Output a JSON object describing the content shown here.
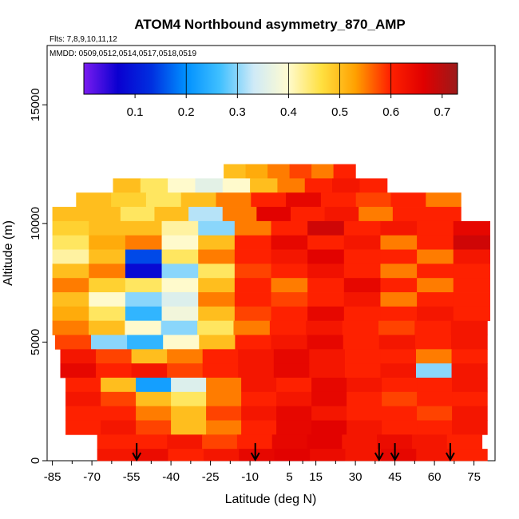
{
  "chart_data": {
    "type": "heatmap",
    "title": "ATOM4 Northbound asymmetry_870_AMP",
    "subtitle_flights": "Flts: 7,8,9,10,11,12",
    "subtitle_dates": "MMDD: 0509,0512,0514,0517,0518,0519",
    "xlabel": "Latitude (deg N)",
    "ylabel": "Altitude (m)",
    "xlim": [
      -87,
      83
    ],
    "ylim": [
      0,
      17500
    ],
    "x_ticks": [
      -85,
      -70,
      -55,
      -40,
      -25,
      -10,
      5,
      15,
      30,
      45,
      60,
      75
    ],
    "y_ticks": [
      0,
      5000,
      10000,
      15000
    ],
    "colorbar": {
      "range": [
        0.0,
        0.73
      ],
      "ticks": [
        0.1,
        0.2,
        0.3,
        0.4,
        0.5,
        0.6,
        0.7
      ],
      "boundaries": [
        0.2,
        0.3,
        0.4,
        0.5,
        0.6
      ],
      "colors": [
        "#7a1cf0",
        "#0a00d0",
        "#0030e0",
        "#0090ff",
        "#40c0ff",
        "#cfeaf7",
        "#fffbd0",
        "#ffe040",
        "#ffa000",
        "#ff2200",
        "#e00000",
        "#9b1a1a"
      ]
    },
    "arrow_latitudes": [
      -53,
      -8,
      39,
      45,
      66
    ],
    "layers": [
      {
        "z0": 11900,
        "z1": 12500,
        "lat0": -20,
        "lat1": 30,
        "values": [
          0.5,
          0.52,
          0.55,
          0.58,
          0.55,
          0.6
        ]
      },
      {
        "z0": 11300,
        "z1": 11900,
        "lat0": -62,
        "lat1": 42,
        "values": [
          0.5,
          0.45,
          0.4,
          0.36,
          0.4,
          0.5,
          0.55,
          0.6,
          0.62,
          0.6
        ]
      },
      {
        "z0": 10700,
        "z1": 11300,
        "lat0": -76,
        "lat1": 70,
        "values": [
          0.5,
          0.48,
          0.45,
          0.5,
          0.55,
          0.6,
          0.65,
          0.6,
          0.58,
          0.6,
          0.55
        ]
      },
      {
        "z0": 10100,
        "z1": 10700,
        "lat0": -85,
        "lat1": 70,
        "values": [
          0.5,
          0.5,
          0.45,
          0.5,
          0.32,
          0.55,
          0.66,
          0.6,
          0.62,
          0.55,
          0.6,
          0.6
        ]
      },
      {
        "z0": 9500,
        "z1": 10100,
        "lat0": -85,
        "lat1": 81,
        "values": [
          0.48,
          0.5,
          0.5,
          0.42,
          0.3,
          0.55,
          0.6,
          0.68,
          0.6,
          0.62,
          0.6,
          0.65
        ]
      },
      {
        "z0": 8900,
        "z1": 9500,
        "lat0": -85,
        "lat1": 81,
        "values": [
          0.45,
          0.52,
          0.55,
          0.4,
          0.5,
          0.6,
          0.65,
          0.6,
          0.62,
          0.55,
          0.6,
          0.68
        ]
      },
      {
        "z0": 8300,
        "z1": 8900,
        "lat0": -85,
        "lat1": 81,
        "values": [
          0.42,
          0.5,
          0.15,
          0.45,
          0.55,
          0.6,
          0.62,
          0.66,
          0.6,
          0.6,
          0.55,
          0.62
        ]
      },
      {
        "z0": 7700,
        "z1": 8300,
        "lat0": -85,
        "lat1": 81,
        "values": [
          0.5,
          0.55,
          0.08,
          0.3,
          0.45,
          0.58,
          0.6,
          0.63,
          0.6,
          0.55,
          0.6,
          0.6
        ]
      },
      {
        "z0": 7100,
        "z1": 7700,
        "lat0": -85,
        "lat1": 81,
        "values": [
          0.55,
          0.48,
          0.45,
          0.4,
          0.5,
          0.6,
          0.55,
          0.6,
          0.65,
          0.6,
          0.55,
          0.6
        ]
      },
      {
        "z0": 6500,
        "z1": 7100,
        "lat0": -85,
        "lat1": 81,
        "values": [
          0.5,
          0.4,
          0.3,
          0.35,
          0.55,
          0.6,
          0.58,
          0.6,
          0.62,
          0.55,
          0.6,
          0.6
        ]
      },
      {
        "z0": 5900,
        "z1": 6500,
        "lat0": -85,
        "lat1": 81,
        "values": [
          0.52,
          0.45,
          0.25,
          0.38,
          0.5,
          0.58,
          0.6,
          0.65,
          0.6,
          0.6,
          0.62,
          0.6
        ]
      },
      {
        "z0": 5300,
        "z1": 5900,
        "lat0": -85,
        "lat1": 80,
        "values": [
          0.55,
          0.5,
          0.4,
          0.3,
          0.45,
          0.55,
          0.6,
          0.62,
          0.6,
          0.58,
          0.6,
          0.62
        ]
      },
      {
        "z0": 4700,
        "z1": 5300,
        "lat0": -84,
        "lat1": 80,
        "values": [
          0.58,
          0.3,
          0.25,
          0.4,
          0.5,
          0.6,
          0.62,
          0.65,
          0.6,
          0.62,
          0.6,
          0.62
        ]
      },
      {
        "z0": 4100,
        "z1": 4700,
        "lat0": -82,
        "lat1": 80,
        "values": [
          0.62,
          0.58,
          0.5,
          0.55,
          0.6,
          0.62,
          0.65,
          0.62,
          0.6,
          0.6,
          0.55,
          0.6
        ]
      },
      {
        "z0": 3500,
        "z1": 4100,
        "lat0": -82,
        "lat1": 80,
        "values": [
          0.65,
          0.6,
          0.62,
          0.58,
          0.6,
          0.62,
          0.65,
          0.62,
          0.6,
          0.62,
          0.3,
          0.62
        ]
      },
      {
        "z0": 2900,
        "z1": 3500,
        "lat0": -80,
        "lat1": 80,
        "values": [
          0.6,
          0.5,
          0.22,
          0.35,
          0.55,
          0.62,
          0.6,
          0.65,
          0.62,
          0.6,
          0.6,
          0.62
        ]
      },
      {
        "z0": 2300,
        "z1": 2900,
        "lat0": -80,
        "lat1": 80,
        "values": [
          0.62,
          0.58,
          0.5,
          0.45,
          0.55,
          0.6,
          0.62,
          0.65,
          0.6,
          0.58,
          0.6,
          0.6
        ]
      },
      {
        "z0": 1700,
        "z1": 2300,
        "lat0": -80,
        "lat1": 80,
        "values": [
          0.6,
          0.6,
          0.55,
          0.5,
          0.58,
          0.62,
          0.65,
          0.62,
          0.6,
          0.6,
          0.58,
          0.62
        ]
      },
      {
        "z0": 1100,
        "z1": 1700,
        "lat0": -80,
        "lat1": 80,
        "values": [
          0.6,
          0.62,
          0.58,
          0.5,
          0.55,
          0.6,
          0.65,
          0.66,
          0.62,
          0.6,
          0.6,
          0.62
        ]
      },
      {
        "z0": 500,
        "z1": 1100,
        "lat0": -68,
        "lat1": 78,
        "values": [
          0.6,
          0.6,
          0.62,
          0.58,
          0.6,
          0.65,
          0.66,
          0.62,
          0.64,
          0.62,
          0.6
        ]
      },
      {
        "z0": 0,
        "z1": 500,
        "lat0": -68,
        "lat1": 80,
        "values": [
          0.62,
          0.64,
          0.6,
          0.62,
          0.65,
          0.66,
          0.64,
          0.62,
          0.65,
          0.62,
          0.6
        ]
      }
    ]
  }
}
